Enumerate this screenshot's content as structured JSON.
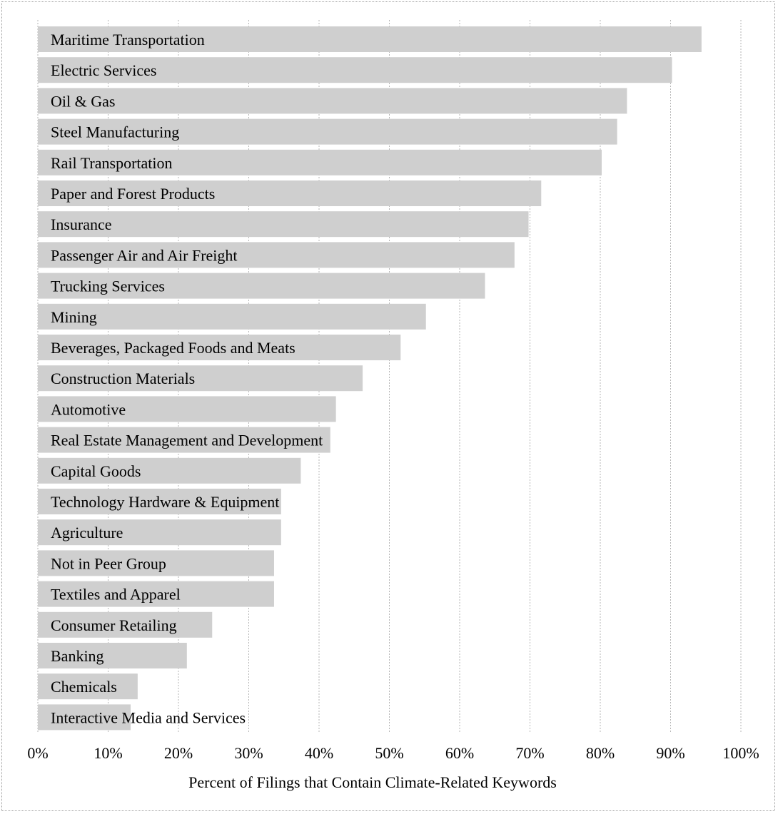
{
  "chart_data": {
    "type": "bar",
    "orientation": "horizontal",
    "title": "",
    "xlabel": "Percent of Filings that Contain Climate-Related Keywords",
    "ylabel": "",
    "xlim": [
      0,
      100
    ],
    "x_ticks": [
      "0%",
      "10%",
      "20%",
      "30%",
      "40%",
      "50%",
      "60%",
      "70%",
      "80%",
      "90%",
      "100%"
    ],
    "grid": "vertical",
    "bar_color": "#cfcfcf",
    "categories": [
      "Maritime Transportation",
      "Electric Services",
      "Oil & Gas",
      "Steel Manufacturing",
      "Rail Transportation",
      "Paper and Forest Products",
      "Insurance",
      "Passenger Air and Air Freight",
      "Trucking Services",
      "Mining",
      "Beverages, Packaged Foods and Meats",
      "Construction Materials",
      "Automotive",
      "Real Estate Management and Development",
      "Capital Goods",
      "Technology Hardware & Equipment",
      "Agriculture",
      "Not in Peer Group",
      "Textiles and Apparel",
      "Consumer Retailing",
      "Banking",
      "Chemicals",
      "Interactive Media and Services"
    ],
    "values": [
      94.4,
      90.2,
      83.8,
      82.4,
      80.2,
      71.6,
      69.8,
      67.8,
      63.6,
      55.2,
      51.6,
      46.2,
      42.4,
      41.6,
      37.4,
      34.6,
      34.6,
      33.6,
      33.6,
      24.8,
      21.2,
      14.2,
      13.2
    ]
  }
}
